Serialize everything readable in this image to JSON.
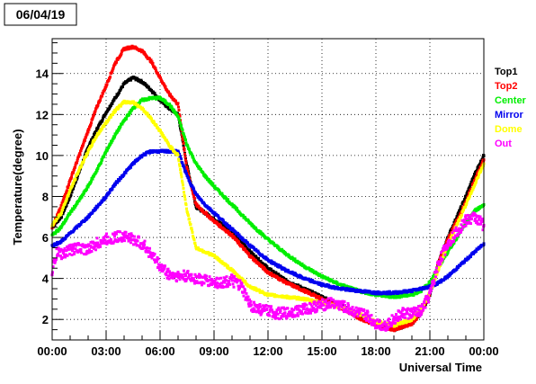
{
  "chart_data": {
    "type": "scatter",
    "title": "06/04/19",
    "xlabel": "Universal Time",
    "ylabel": "Temperature(degree)",
    "xlim": [
      0,
      24
    ],
    "ylim": [
      1.0,
      15.7
    ],
    "grid": true,
    "legend_position": "right",
    "xticks": [
      {
        "value": 0,
        "label": "00:00"
      },
      {
        "value": 3,
        "label": "03:00"
      },
      {
        "value": 6,
        "label": "06:00"
      },
      {
        "value": 9,
        "label": "09:00"
      },
      {
        "value": 12,
        "label": "12:00"
      },
      {
        "value": 15,
        "label": "15:00"
      },
      {
        "value": 18,
        "label": "18:00"
      },
      {
        "value": 21,
        "label": "21:00"
      },
      {
        "value": 24,
        "label": "00:00"
      }
    ],
    "yticks": [
      {
        "value": 2,
        "label": "2"
      },
      {
        "value": 4,
        "label": "4"
      },
      {
        "value": 6,
        "label": "6"
      },
      {
        "value": 8,
        "label": "8"
      },
      {
        "value": 10,
        "label": "10"
      },
      {
        "value": 12,
        "label": "12"
      },
      {
        "value": 14,
        "label": "14"
      }
    ],
    "series": [
      {
        "name": "Top1",
        "color": "#000000",
        "x": [
          0,
          0.5,
          1,
          1.5,
          2,
          2.5,
          3,
          3.5,
          4,
          4.5,
          5,
          5.5,
          6,
          6.5,
          7,
          7.5,
          8,
          8.5,
          9,
          10,
          11,
          12,
          13,
          14,
          15,
          16,
          17,
          18,
          19,
          20,
          20.5,
          21,
          21.5,
          22,
          22.5,
          23,
          23.5,
          24
        ],
        "y": [
          6.5,
          7.0,
          8.0,
          9.2,
          10.4,
          11.3,
          12.1,
          12.8,
          13.5,
          13.8,
          13.6,
          13.2,
          12.7,
          12.3,
          12.0,
          9.5,
          7.5,
          7.2,
          6.9,
          6.3,
          5.3,
          4.5,
          3.9,
          3.5,
          3.1,
          2.7,
          2.2,
          1.8,
          1.5,
          1.8,
          2.3,
          3.2,
          4.8,
          6.0,
          7.0,
          8.0,
          9.1,
          10.0
        ]
      },
      {
        "name": "Top2",
        "color": "#ff0000",
        "x": [
          0,
          0.5,
          1,
          1.5,
          2,
          2.5,
          3,
          3.5,
          4,
          4.5,
          5,
          5.5,
          6,
          6.5,
          7,
          7.5,
          8,
          8.5,
          9,
          10,
          11,
          12,
          13,
          14,
          15,
          16,
          17,
          18,
          19,
          20,
          20.5,
          21,
          21.5,
          22,
          22.5,
          23,
          23.5,
          24
        ],
        "y": [
          6.5,
          7.5,
          8.8,
          10.0,
          11.2,
          12.4,
          13.4,
          14.5,
          15.2,
          15.3,
          15.1,
          14.6,
          13.8,
          13.0,
          12.5,
          9.3,
          7.6,
          7.2,
          6.8,
          6.1,
          5.1,
          4.3,
          3.8,
          3.4,
          3.0,
          2.6,
          2.1,
          1.7,
          1.5,
          1.8,
          2.3,
          3.3,
          4.8,
          5.9,
          6.8,
          7.7,
          8.8,
          9.8
        ]
      },
      {
        "name": "Center",
        "color": "#00ee00",
        "x": [
          0,
          0.5,
          1,
          1.5,
          2,
          2.5,
          3,
          3.5,
          4,
          4.5,
          5,
          5.5,
          6,
          6.5,
          7,
          7.5,
          8,
          8.5,
          9,
          10,
          11,
          12,
          13,
          14,
          15,
          16,
          17,
          18,
          19,
          20,
          20.5,
          21,
          21.5,
          22,
          22.5,
          23,
          23.5,
          24
        ],
        "y": [
          6.1,
          6.5,
          7.2,
          7.8,
          8.5,
          9.3,
          10.2,
          11.0,
          11.7,
          12.3,
          12.7,
          12.8,
          12.8,
          12.5,
          11.9,
          10.5,
          9.6,
          9.0,
          8.5,
          7.6,
          6.7,
          5.9,
          5.2,
          4.6,
          4.1,
          3.7,
          3.4,
          3.2,
          3.1,
          3.2,
          3.4,
          3.8,
          4.6,
          5.3,
          6.0,
          6.7,
          7.3,
          7.6
        ]
      },
      {
        "name": "Mirror",
        "color": "#0000ee",
        "x": [
          0,
          0.5,
          1,
          1.5,
          2,
          2.5,
          3,
          3.5,
          4,
          4.5,
          5,
          5.5,
          6,
          6.5,
          7,
          7.5,
          8,
          8.5,
          9,
          10,
          11,
          12,
          13,
          14,
          15,
          16,
          17,
          18,
          19,
          20,
          20.5,
          21,
          21.5,
          22,
          22.5,
          23,
          23.5,
          24
        ],
        "y": [
          5.6,
          5.8,
          6.2,
          6.6,
          7.0,
          7.5,
          8.0,
          8.6,
          9.1,
          9.6,
          10.0,
          10.2,
          10.2,
          10.2,
          10.2,
          9.0,
          8.1,
          7.6,
          7.2,
          6.4,
          5.6,
          4.9,
          4.4,
          4.0,
          3.7,
          3.5,
          3.4,
          3.3,
          3.3,
          3.4,
          3.5,
          3.6,
          3.8,
          4.1,
          4.5,
          4.9,
          5.3,
          5.7
        ]
      },
      {
        "name": "Dome",
        "color": "#ffff00",
        "x": [
          0,
          0.5,
          1,
          1.5,
          2,
          2.5,
          3,
          3.5,
          4,
          4.5,
          5,
          5.5,
          6,
          6.5,
          7,
          7.5,
          8,
          8.5,
          9,
          10,
          11,
          12,
          13,
          14,
          15,
          16,
          17,
          18,
          19,
          20,
          20.5,
          21,
          21.5,
          22,
          22.5,
          23,
          23.5,
          24
        ],
        "y": [
          6.6,
          7.2,
          8.3,
          9.3,
          10.2,
          11.0,
          11.6,
          12.2,
          12.6,
          12.6,
          12.3,
          11.8,
          11.2,
          10.5,
          10.0,
          7.3,
          5.5,
          5.3,
          5.1,
          4.4,
          3.6,
          3.2,
          3.1,
          3.0,
          2.8,
          2.6,
          2.3,
          1.9,
          1.7,
          2.0,
          2.5,
          3.3,
          4.5,
          5.7,
          6.6,
          7.6,
          8.6,
          9.6
        ]
      },
      {
        "name": "Out",
        "color": "#ff00ff",
        "x": [
          0,
          0.1,
          0.3,
          0.5,
          1,
          1.5,
          2,
          2.5,
          3,
          3.5,
          4,
          4.5,
          5,
          5.5,
          6,
          6.5,
          7,
          7.5,
          8,
          8.5,
          9,
          9.5,
          10,
          10.5,
          11,
          11.5,
          12,
          12.5,
          13,
          13.5,
          14,
          14.5,
          15,
          15.5,
          16,
          16.5,
          17,
          17.5,
          18,
          18.5,
          19,
          19.5,
          20,
          20.5,
          21,
          21.5,
          22,
          22.5,
          23,
          23.5,
          24
        ],
        "y": [
          4.0,
          4.8,
          5.3,
          5.2,
          5.4,
          5.5,
          5.4,
          5.7,
          5.9,
          6.0,
          6.1,
          5.9,
          5.7,
          5.2,
          4.6,
          4.2,
          4.1,
          4.1,
          4.0,
          3.9,
          3.8,
          3.8,
          3.9,
          3.6,
          2.7,
          2.5,
          2.4,
          2.3,
          2.3,
          2.4,
          2.5,
          2.6,
          2.7,
          2.8,
          2.7,
          2.5,
          2.3,
          2.2,
          1.8,
          1.7,
          2.0,
          2.3,
          2.3,
          2.4,
          3.2,
          4.8,
          5.7,
          6.3,
          6.8,
          7.0,
          6.6
        ]
      }
    ]
  }
}
